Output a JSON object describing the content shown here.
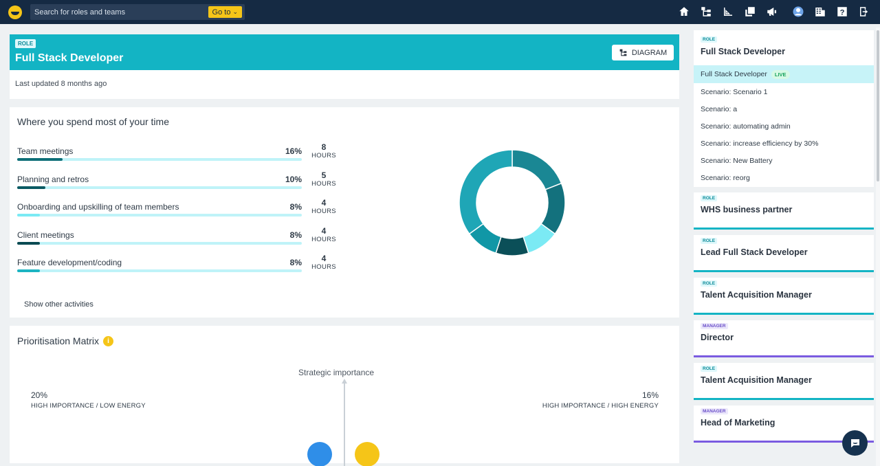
{
  "topbar": {
    "search_placeholder": "Search for roles and teams",
    "goto_label": "Go to",
    "icons": [
      "home-icon",
      "org-chart-icon",
      "ruler-icon",
      "copy-icon",
      "announcement-icon",
      "user-avatar-icon",
      "building-icon",
      "help-icon",
      "logout-icon"
    ]
  },
  "role_header": {
    "tag": "ROLE",
    "title": "Full Stack Developer",
    "diagram_label": "DIAGRAM",
    "last_updated": "Last updated 8 months ago"
  },
  "time_section": {
    "title": "Where you spend most of your time",
    "hours_unit": "HOURS",
    "activities": [
      {
        "label": "Team meetings",
        "pct": "16%",
        "hours": "8",
        "fill": 0.16,
        "color": "#0e6f78"
      },
      {
        "label": "Planning and retros",
        "pct": "10%",
        "hours": "5",
        "fill": 0.1,
        "color": "#0a5a63"
      },
      {
        "label": "Onboarding and upskilling of team members",
        "pct": "8%",
        "hours": "4",
        "fill": 0.08,
        "color": "#7beaf4"
      },
      {
        "label": "Client meetings",
        "pct": "8%",
        "hours": "4",
        "fill": 0.08,
        "color": "#0a4a52"
      },
      {
        "label": "Feature development/coding",
        "pct": "8%",
        "hours": "4",
        "fill": 0.08,
        "color": "#1cb4c2"
      }
    ],
    "show_other": "Show other activities",
    "donut_colors": [
      "#1a8794",
      "#13717d",
      "#7beaf4",
      "#0b4f58",
      "#1197a6",
      "#1fa6b6"
    ]
  },
  "matrix": {
    "title": "Prioritisation Matrix",
    "axis_label": "Strategic importance",
    "left_quadrant": {
      "pct": "20%",
      "label": "HIGH IMPORTANCE / LOW ENERGY"
    },
    "right_quadrant": {
      "pct": "16%",
      "label": "HIGH IMPORTANCE / HIGH ENERGY"
    },
    "bubble_colors": [
      "#2f8ee8",
      "#f5c518"
    ]
  },
  "sidebar": {
    "current": {
      "tag": "ROLE",
      "title": "Full Stack Developer",
      "live_item": "Full Stack Developer",
      "live_label": "LIVE",
      "scenarios": [
        "Scenario: Scenario 1",
        "Scenario: a",
        "Scenario: automating admin",
        "Scenario: increase efficiency by 30%",
        "Scenario: New Battery",
        "Scenario: reorg"
      ]
    },
    "cards": [
      {
        "tag": "ROLE",
        "title": "WHS business partner"
      },
      {
        "tag": "ROLE",
        "title": "Lead Full Stack Developer"
      },
      {
        "tag": "ROLE",
        "title": "Talent Acquisition Manager"
      },
      {
        "tag": "MANAGER",
        "title": "Director"
      },
      {
        "tag": "ROLE",
        "title": "Talent Acquisition Manager"
      },
      {
        "tag": "MANAGER",
        "title": "Head of Marketing"
      }
    ]
  }
}
